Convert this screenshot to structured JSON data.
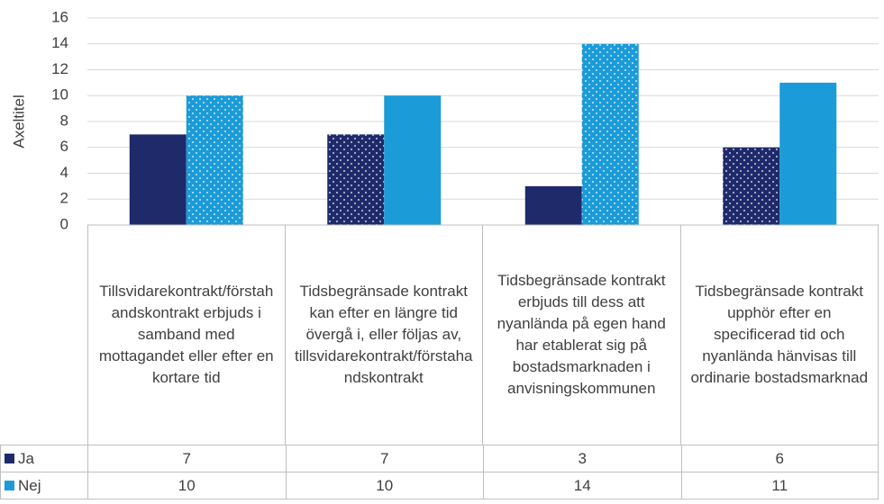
{
  "chart_data": {
    "type": "bar",
    "y_axis_label": "Axeltitel",
    "categories": [
      "Tillsvidarekontrakt/förstahandskontrakt erbjuds i samband med mottagandet eller efter en kortare tid",
      "Tidsbegränsade kontrakt kan efter en längre tid övergå i, eller följas av, tillsvidarekontrakt/förstahandskontrakt",
      "Tidsbegränsade kontrakt erbjuds till dess att nyanlända på egen hand har etablerat sig på bostadsmarknaden i anvisningskommunen",
      "Tidsbegränsade kontrakt upphör efter en specificerad tid och nyanlända hänvisas till ordinarie bostadsmarknad"
    ],
    "series": [
      {
        "name": "Ja",
        "color": "#1f2a6b",
        "values": [
          7,
          7,
          3,
          6
        ],
        "dotted": [
          false,
          true,
          false,
          true
        ]
      },
      {
        "name": "Nej",
        "color": "#1b9bd7",
        "values": [
          10,
          10,
          14,
          11
        ],
        "dotted": [
          true,
          false,
          true,
          false
        ]
      }
    ],
    "ylim": [
      0,
      16
    ],
    "yticks": [
      0,
      2,
      4,
      6,
      8,
      10,
      12,
      14,
      16
    ],
    "grid": true
  }
}
